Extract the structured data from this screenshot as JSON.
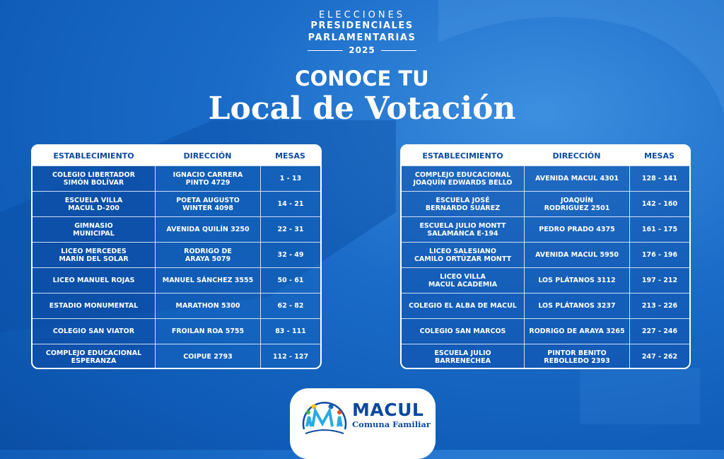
{
  "header": {
    "line1": "ELECCIONES",
    "line2": "PRESIDENCIALES",
    "line3": "PARLAMENTARIAS",
    "year": "2025",
    "subtitle": "CONOCE TU",
    "title": "Local de Votación"
  },
  "columns": [
    "ESTABLECIMIENTO",
    "DIRECCIÓN",
    "MESAS"
  ],
  "left_table": [
    [
      "COLEGIO LIBERTADOR\nSIMÓN BOLÍVAR",
      "IGNACIO CARRERA\nPINTO 4729",
      "1 - 13"
    ],
    [
      "ESCUELA VILLA\nMACUL D-200",
      "POETA AUGUSTO\nWINTER 4098",
      "14 - 21"
    ],
    [
      "GIMNASIO\nMUNICIPAL",
      "AVENIDA QUILÍN 3250",
      "22 - 31"
    ],
    [
      "LICEO MERCEDES\nMARÍN DEL SOLAR",
      "RODRIGO DE\nARAYA 5079",
      "32 - 49"
    ],
    [
      "LICEO MANUEL ROJAS",
      "MANUEL SÁNCHEZ 3555",
      "50 - 61"
    ],
    [
      "ESTADIO MONUMENTAL",
      "MARATHON 5300",
      "62 - 82"
    ],
    [
      "COLEGIO SAN VIATOR",
      "FROILAN ROA 5755",
      "83 - 111"
    ],
    [
      "COMPLEJO EDUCACIONAL\nESPERANZA",
      "COIPUE 2793",
      "112 - 127"
    ]
  ],
  "right_table": [
    [
      "COMPLEJO EDUCACIONAL\nJOAQUÍN EDWARDS BELLO",
      "AVENIDA MACUL 4301",
      "128 - 141"
    ],
    [
      "ESCUELA JOSÉ\nBERNARDO SUÁREZ",
      "JOAQUÍN\nRODRIGUEZ 2501",
      "142 - 160"
    ],
    [
      "ESCUELA JULIO MONTT\nSALAMANCA E-194",
      "PEDRO PRADO 4375",
      "161 - 175"
    ],
    [
      "LICEO SALESIANO\nCAMILO ORTÚZAR MONTT",
      "AVENIDA MACUL 5950",
      "176 - 196"
    ],
    [
      "LICEO VILLA\nMACUL ACADEMIA",
      "LOS PLÁTANOS 3112",
      "197 - 212"
    ],
    [
      "COLEGIO EL ALBA DE MACUL",
      "LOS PLÁTANOS 3237",
      "213 - 226"
    ],
    [
      "COLEGIO SAN MARCOS",
      "RODRIGO DE ARAYA 3265",
      "227 - 246"
    ],
    [
      "ESCUELA JULIO\nBARRENECHEA",
      "PINTOR BENITO\nREBOLLEDO 2393",
      "247 - 262"
    ]
  ],
  "logo": {
    "name": "MACUL",
    "tagline": "Comuna Familiar"
  },
  "colors": {
    "background": "#1565c0",
    "header_text": "#0d4aa0",
    "white": "#ffffff"
  }
}
